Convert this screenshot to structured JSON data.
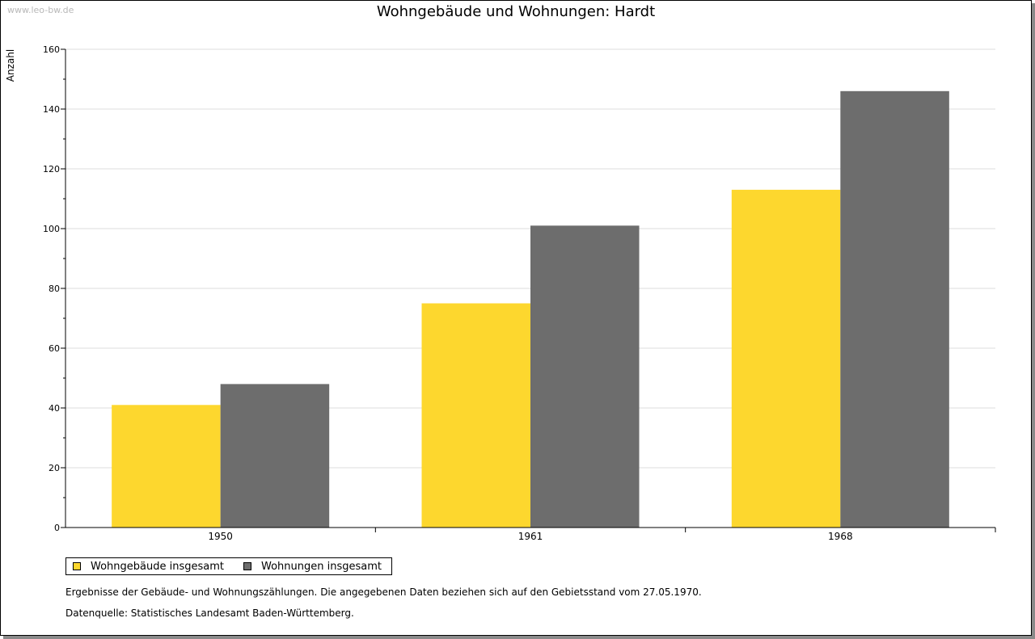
{
  "watermark": "www.leo-bw.de",
  "chart_data": {
    "type": "bar",
    "title": "Wohngebäude und Wohnungen: Hardt",
    "ylabel": "Anzahl",
    "xlabel": "",
    "categories": [
      "1950",
      "1961",
      "1968"
    ],
    "series": [
      {
        "name": "Wohngebäude insgesamt",
        "color": "#fdd72e",
        "values": [
          41,
          75,
          113
        ]
      },
      {
        "name": "Wohnungen insgesamt",
        "color": "#6d6d6d",
        "values": [
          48,
          101,
          146
        ]
      }
    ],
    "ylim": [
      0,
      160
    ],
    "yticks": [
      "0",
      "20",
      "40",
      "60",
      "80",
      "100",
      "120",
      "140",
      "160"
    ],
    "grid": true,
    "legend": "bottom-left"
  },
  "notes": {
    "line1": "Ergebnisse der Gebäude- und Wohnungszählungen. Die angegebenen Daten beziehen sich auf den Gebietsstand vom 27.05.1970.",
    "line2": "Datenquelle: Statistisches Landesamt Baden-Württemberg."
  }
}
